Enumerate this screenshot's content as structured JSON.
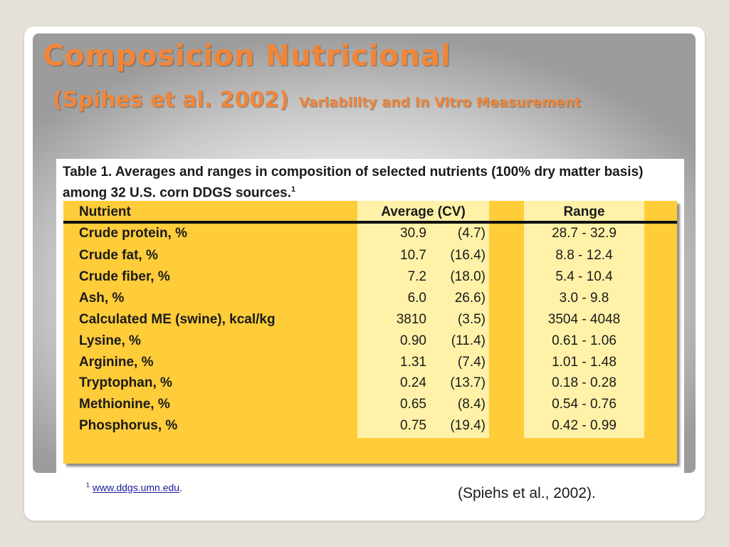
{
  "slide": {
    "title": "Composicion Nutricional",
    "subtitle_citation": "(Spihes et al. 2002)",
    "subtitle_text": "Variability and In Vitro Measurement"
  },
  "table": {
    "caption": "Table 1.  Averages and ranges in composition of selected nutrients (100% dry matter basis) among 32 U.S. corn DDGS sources.",
    "caption_sup": "1",
    "headers": {
      "nutrient": "Nutrient",
      "average": "Average (CV)",
      "range": "Range"
    },
    "rows": [
      {
        "nutrient": "Crude protein, %",
        "average": "30.9",
        "cv": "(4.7)",
        "range": "28.7 - 32.9"
      },
      {
        "nutrient": "Crude fat, %",
        "average": "10.7",
        "cv": "(16.4)",
        "range": "8.8 - 12.4"
      },
      {
        "nutrient": "Crude fiber, %",
        "average": "7.2",
        "cv": "(18.0)",
        "range": "5.4 - 10.4"
      },
      {
        "nutrient": "Ash, %",
        "average": "6.0",
        "cv": "26.6)",
        "range": "3.0 - 9.8"
      },
      {
        "nutrient": "Calculated ME (swine), kcal/kg",
        "average": "3810",
        "cv": "(3.5)",
        "range": "3504 - 4048"
      },
      {
        "nutrient": "Lysine, %",
        "average": "0.90",
        "cv": "(11.4)",
        "range": "0.61 - 1.06"
      },
      {
        "nutrient": "Arginine, %",
        "average": "1.31",
        "cv": "(7.4)",
        "range": "1.01 - 1.48"
      },
      {
        "nutrient": "Tryptophan, %",
        "average": "0.24",
        "cv": "(13.7)",
        "range": "0.18 - 0.28"
      },
      {
        "nutrient": "Methionine, %",
        "average": "0.65",
        "cv": "(8.4)",
        "range": "0.54 - 0.76"
      },
      {
        "nutrient": "Phosphorus, %",
        "average": "0.75",
        "cv": "(19.4)",
        "range": "0.42 - 0.99"
      }
    ],
    "footnote_mark": "1",
    "footnote_link": "www.ddgs.umn.edu",
    "footnote_period": "."
  },
  "source_citation": "(Spiehs et al., 2002).",
  "colors": {
    "title": "#f0863a",
    "table_gold": "#ffcc3a",
    "table_pale": "#fff2a8",
    "link": "#1a1a9a"
  }
}
